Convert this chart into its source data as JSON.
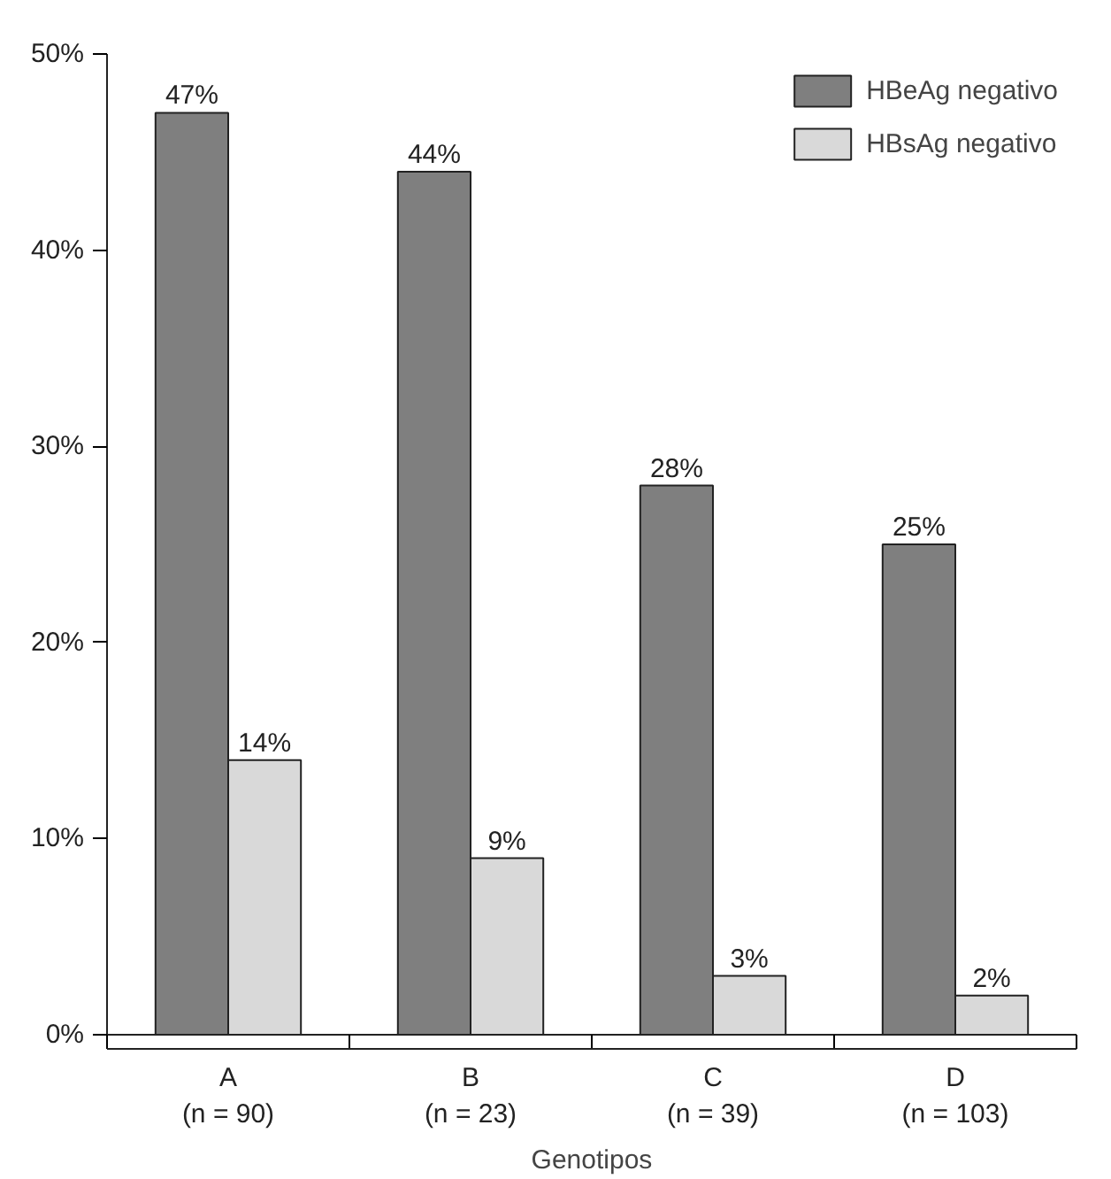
{
  "chart_data": {
    "type": "bar",
    "xlabel": "Genotipos",
    "categories": [
      "A\n(n = 90)",
      "B\n(n = 23)",
      "C\n(n = 39)",
      "D\n(n = 103)"
    ],
    "series": [
      {
        "name": "HBeAg negativo",
        "color": "#7f7f7f",
        "values": [
          47,
          44,
          28,
          25
        ],
        "value_labels": [
          "47%",
          "44%",
          "28%",
          "25%"
        ]
      },
      {
        "name": "HBsAg negativo",
        "color": "#d9d9d9",
        "values": [
          14,
          9,
          3,
          2
        ],
        "value_labels": [
          "14%",
          "9%",
          "3%",
          "2%"
        ]
      }
    ],
    "ylim": [
      0,
      50
    ],
    "yticks": [
      {
        "value": 0,
        "label": "0%"
      },
      {
        "value": 10,
        "label": "10%"
      },
      {
        "value": 20,
        "label": "20%"
      },
      {
        "value": 30,
        "label": "30%"
      },
      {
        "value": 40,
        "label": "40%"
      },
      {
        "value": 50,
        "label": "50%"
      }
    ],
    "legend": "top right",
    "grid": false
  }
}
